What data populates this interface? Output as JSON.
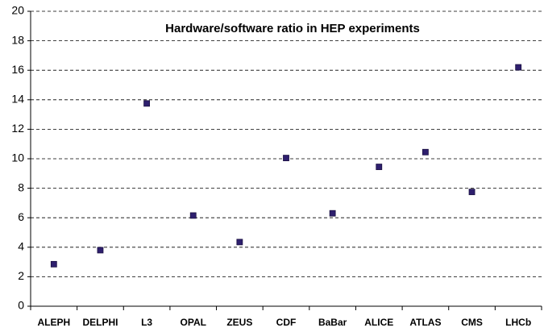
{
  "chart_data": {
    "type": "scatter",
    "title": "Hardware/software ratio in HEP experiments",
    "categories": [
      "ALEPH",
      "DELPHI",
      "L3",
      "OPAL",
      "ZEUS",
      "CDF",
      "BaBar",
      "ALICE",
      "ATLAS",
      "CMS",
      "LHCb"
    ],
    "values": [
      2.85,
      3.8,
      13.75,
      6.15,
      4.35,
      10.05,
      6.3,
      9.45,
      10.45,
      7.75,
      16.2
    ],
    "color": "#2e1f6e",
    "ylim": [
      0,
      20
    ],
    "yticks": [
      0,
      2,
      4,
      6,
      8,
      10,
      12,
      14,
      16,
      18,
      20
    ],
    "grid": true
  }
}
